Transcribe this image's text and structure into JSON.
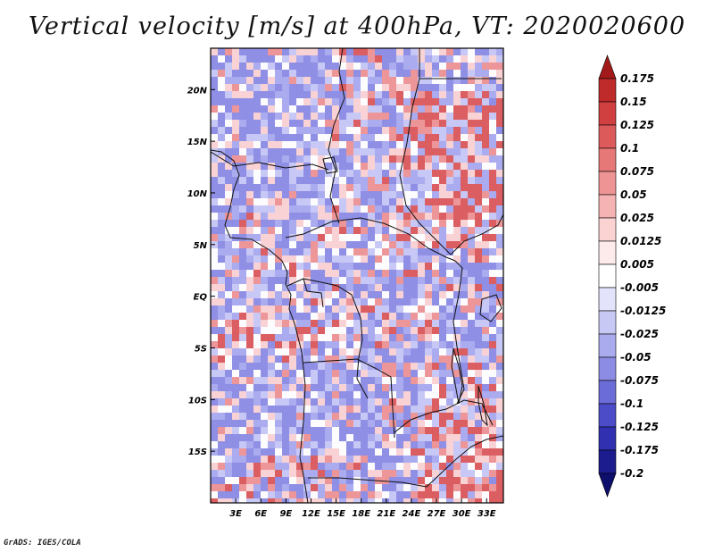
{
  "title": "Vertical velocity [m/s] at 400hPa, VT: 2020020600",
  "footer": "GrADS: IGES/COLA",
  "map": {
    "lon_range": [
      0,
      35
    ],
    "lat_range": [
      -20,
      24
    ],
    "lat_ticks": [
      "20N",
      "15N",
      "10N",
      "5N",
      "EQ",
      "5S",
      "10S",
      "15S"
    ],
    "lat_tick_values": [
      20,
      15,
      10,
      5,
      0,
      -5,
      -10,
      -15
    ],
    "lon_ticks": [
      "3E",
      "6E",
      "9E",
      "12E",
      "15E",
      "18E",
      "21E",
      "24E",
      "27E",
      "30E",
      "33E"
    ],
    "lon_tick_values": [
      3,
      6,
      9,
      12,
      15,
      18,
      21,
      24,
      27,
      30,
      33
    ]
  },
  "colorbar": {
    "labels": [
      "0.175",
      "0.15",
      "0.125",
      "0.1",
      "0.075",
      "0.05",
      "0.025",
      "0.0125",
      "0.005",
      "-0.005",
      "-0.0125",
      "-0.025",
      "-0.05",
      "-0.075",
      "-0.1",
      "-0.125",
      "-0.175",
      "-0.2"
    ],
    "colors": [
      "#a31a1a",
      "#bf2a2a",
      "#d14040",
      "#dc5a5a",
      "#e77878",
      "#ef9494",
      "#f6b3b3",
      "#fbd3d3",
      "#fdeaea",
      "#ffffff",
      "#e3e3fb",
      "#c8c8f5",
      "#aaaaee",
      "#8c8ce4",
      "#6c6cd8",
      "#4c4cc8",
      "#3030b0",
      "#1c1c8e",
      "#0e0e6c"
    ]
  }
}
